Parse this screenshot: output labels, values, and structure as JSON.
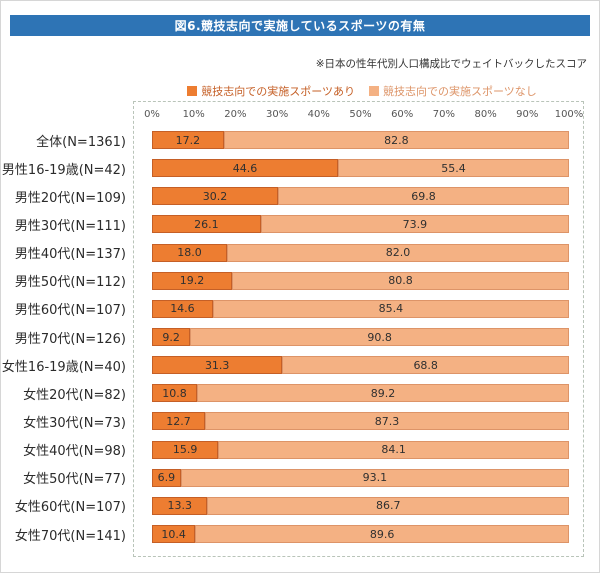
{
  "title": "図6.競技志向で実施しているスポーツの有無",
  "note": "※日本の性年代別人口構成比でウェイトバックしたスコア",
  "colors": {
    "title_bg": "#2e74b5",
    "title_text": "#ffffff",
    "series_yes": "#ed7d31",
    "series_yes_border": "#c55f26",
    "series_no": "#f4b183",
    "series_no_border": "#dd9468",
    "plot_border": "#b9c4b9"
  },
  "chart_data": {
    "type": "bar",
    "orientation": "horizontal",
    "stacked": true,
    "title": "図6.競技志向で実施しているスポーツの有無",
    "xlabel": "",
    "ylabel": "",
    "xlim": [
      0,
      100
    ],
    "x_ticks": [
      "0%",
      "10%",
      "20%",
      "30%",
      "40%",
      "50%",
      "60%",
      "70%",
      "80%",
      "90%",
      "100%"
    ],
    "legend_position": "top",
    "grid": false,
    "categories": [
      "全体(N=1361)",
      "男性16-19歳(N=42)",
      "男性20代(N=109)",
      "男性30代(N=111)",
      "男性40代(N=137)",
      "男性50代(N=112)",
      "男性60代(N=107)",
      "男性70代(N=126)",
      "女性16-19歳(N=40)",
      "女性20代(N=82)",
      "女性30代(N=73)",
      "女性40代(N=98)",
      "女性50代(N=77)",
      "女性60代(N=107)",
      "女性70代(N=141)"
    ],
    "series": [
      {
        "name": "競技志向での実施スポーツあり",
        "color": "#ed7d31",
        "border": "#c55f26",
        "values": [
          17.2,
          44.6,
          30.2,
          26.1,
          18.0,
          19.2,
          14.6,
          9.2,
          31.3,
          10.8,
          12.7,
          15.9,
          6.9,
          13.3,
          10.4
        ]
      },
      {
        "name": "競技志向での実施スポーツなし",
        "color": "#f4b183",
        "border": "#dd9468",
        "values": [
          82.8,
          55.4,
          69.8,
          73.9,
          82.0,
          80.8,
          85.4,
          90.8,
          68.8,
          89.2,
          87.3,
          84.1,
          93.1,
          86.7,
          89.6
        ]
      }
    ]
  }
}
